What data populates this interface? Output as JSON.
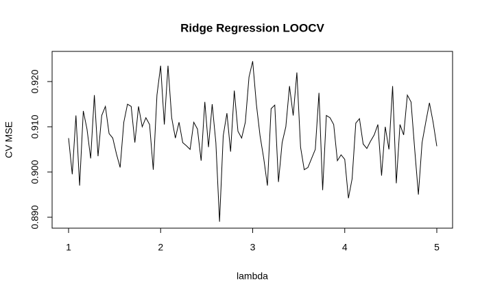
{
  "chart_data": {
    "type": "line",
    "title": "Ridge Regression LOOCV",
    "x_label": "lambda",
    "y_label": "CV MSE",
    "x": [
      1,
      1.04,
      1.08,
      1.12,
      1.16,
      1.2,
      1.24,
      1.28,
      1.32,
      1.36,
      1.4,
      1.44,
      1.48,
      1.52,
      1.56,
      1.6,
      1.64,
      1.68,
      1.72,
      1.76,
      1.8,
      1.84,
      1.88,
      1.92,
      1.96,
      2,
      2.04,
      2.08,
      2.12,
      2.16,
      2.2,
      2.24,
      2.28,
      2.32,
      2.36,
      2.4,
      2.44,
      2.48,
      2.52,
      2.56,
      2.6,
      2.64,
      2.68,
      2.72,
      2.76,
      2.8,
      2.84,
      2.88,
      2.92,
      2.96,
      3,
      3.04,
      3.08,
      3.12,
      3.16,
      3.2,
      3.24,
      3.28,
      3.32,
      3.36,
      3.4,
      3.44,
      3.48,
      3.52,
      3.56,
      3.6,
      3.64,
      3.68,
      3.72,
      3.76,
      3.8,
      3.84,
      3.88,
      3.92,
      3.96,
      4,
      4.04,
      4.08,
      4.12,
      4.16,
      4.2,
      4.24,
      4.28,
      4.32,
      4.36,
      4.4,
      4.44,
      4.48,
      4.52,
      4.56,
      4.6,
      4.64,
      4.68,
      4.72,
      4.76,
      4.8,
      4.84,
      4.88,
      4.92,
      4.96,
      5
    ],
    "series": [
      {
        "name": "CV MSE",
        "color": "#000000",
        "values": [
          0.9075,
          0.8995,
          0.9125,
          0.897,
          0.9135,
          0.9095,
          0.903,
          0.917,
          0.9035,
          0.9125,
          0.9145,
          0.9085,
          0.9075,
          0.904,
          0.901,
          0.911,
          0.915,
          0.9145,
          0.9065,
          0.9145,
          0.91,
          0.912,
          0.9105,
          0.9005,
          0.917,
          0.9235,
          0.9105,
          0.9235,
          0.912,
          0.9075,
          0.911,
          0.9065,
          0.9058,
          0.905,
          0.911,
          0.9095,
          0.9025,
          0.9155,
          0.9055,
          0.915,
          0.9065,
          0.889,
          0.908,
          0.913,
          0.9045,
          0.918,
          0.909,
          0.9075,
          0.911,
          0.921,
          0.9245,
          0.915,
          0.908,
          0.903,
          0.897,
          0.914,
          0.9148,
          0.8978,
          0.9065,
          0.91,
          0.919,
          0.9125,
          0.922,
          0.9055,
          0.9005,
          0.901,
          0.903,
          0.905,
          0.9175,
          0.896,
          0.9125,
          0.912,
          0.9105,
          0.9025,
          0.9038,
          0.9028,
          0.8942,
          0.8985,
          0.9108,
          0.9118,
          0.9062,
          0.9052,
          0.9068,
          0.9082,
          0.9105,
          0.8992,
          0.91,
          0.905,
          0.919,
          0.8975,
          0.9105,
          0.9082,
          0.917,
          0.9155,
          0.905,
          0.895,
          0.9065,
          0.911,
          0.9153,
          0.911,
          0.9057
        ]
      }
    ],
    "xlim": [
      0.8212,
      5.1713
    ],
    "ylim": [
      0.88758,
      0.92667
    ],
    "xticks": [
      1,
      2,
      3,
      4,
      5
    ],
    "yticks": [
      {
        "value": 0.89,
        "label": "0.890"
      },
      {
        "value": 0.9,
        "label": "0.900"
      },
      {
        "value": 0.91,
        "label": "0.910"
      },
      {
        "value": 0.92,
        "label": "0.920"
      }
    ]
  }
}
